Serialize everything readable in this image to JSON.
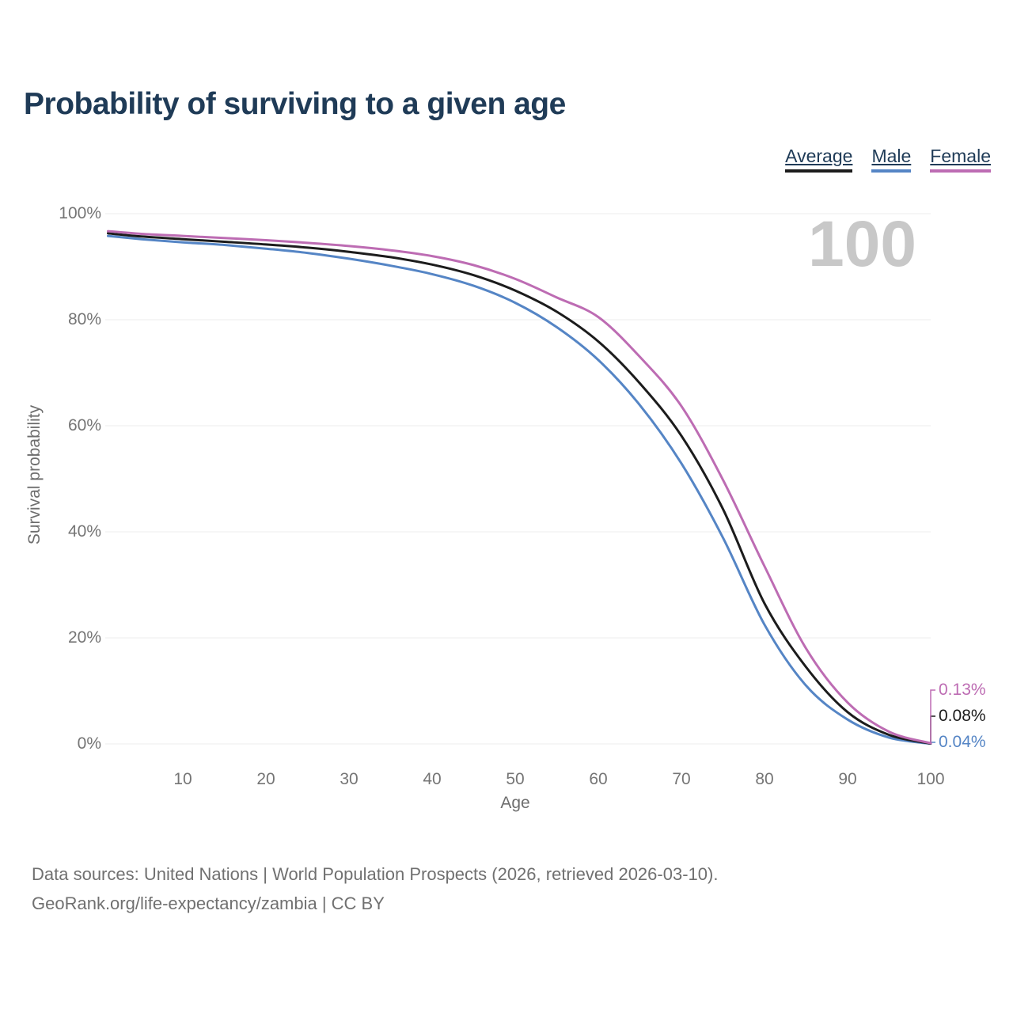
{
  "title": "Probability of surviving to a given age",
  "watermark_age": "100",
  "legend": {
    "items": [
      "Average",
      "Male",
      "Female"
    ]
  },
  "colors": {
    "average": "#1c1c1c",
    "male": "#5585c5",
    "female": "#bd6cb3",
    "title_text": "#1f3b57",
    "axis_text": "#757575",
    "gridline": "#ececec",
    "watermark": "#c8c8c8",
    "footer_text": "#707070"
  },
  "chart_data": {
    "type": "line",
    "title": "Probability of surviving to a given age",
    "xlabel": "Age",
    "ylabel": "Survival probability",
    "xlim": [
      1,
      100
    ],
    "ylim": [
      0,
      100
    ],
    "grid": true,
    "legend_position": "top-right",
    "x_ticks": [
      10,
      20,
      30,
      40,
      50,
      60,
      70,
      80,
      90,
      100
    ],
    "x_tick_labels": [
      "10",
      "20",
      "30",
      "40",
      "50",
      "60",
      "70",
      "80",
      "90",
      "100"
    ],
    "y_ticks": [
      0,
      20,
      40,
      60,
      80,
      100
    ],
    "y_tick_labels": [
      "0%",
      "20%",
      "40%",
      "60%",
      "80%",
      "100%"
    ],
    "x": [
      1,
      5,
      10,
      15,
      20,
      25,
      30,
      35,
      40,
      45,
      50,
      55,
      60,
      65,
      70,
      75,
      80,
      85,
      90,
      95,
      100
    ],
    "series": [
      {
        "name": "Average",
        "color": "#1c1c1c",
        "end_label": "0.08%",
        "values": [
          96.3,
          95.7,
          95.2,
          94.7,
          94.2,
          93.6,
          92.8,
          91.8,
          90.4,
          88.4,
          85.5,
          81.5,
          75.9,
          68.0,
          58.1,
          44.3,
          26.5,
          14.5,
          6.0,
          1.7,
          0.08
        ]
      },
      {
        "name": "Male",
        "color": "#5585c5",
        "end_label": "0.04%",
        "values": [
          95.8,
          95.2,
          94.6,
          94.1,
          93.4,
          92.6,
          91.5,
          90.2,
          88.6,
          86.4,
          83.2,
          78.6,
          72.4,
          63.9,
          52.9,
          38.9,
          22.5,
          11.0,
          4.6,
          1.2,
          0.04
        ]
      },
      {
        "name": "Female",
        "color": "#bd6cb3",
        "end_label": "0.13%",
        "values": [
          96.7,
          96.2,
          95.8,
          95.4,
          95.0,
          94.5,
          93.9,
          93.1,
          92.0,
          90.3,
          87.7,
          84.2,
          80.5,
          73.0,
          63.7,
          49.8,
          33.5,
          18.0,
          7.8,
          2.3,
          0.13
        ]
      }
    ]
  },
  "footer": {
    "line1": "Data sources: United Nations | World Population Prospects (2026, retrieved 2026-03-10).",
    "line2": "GeoRank.org/life-expectancy/zambia | CC BY"
  }
}
